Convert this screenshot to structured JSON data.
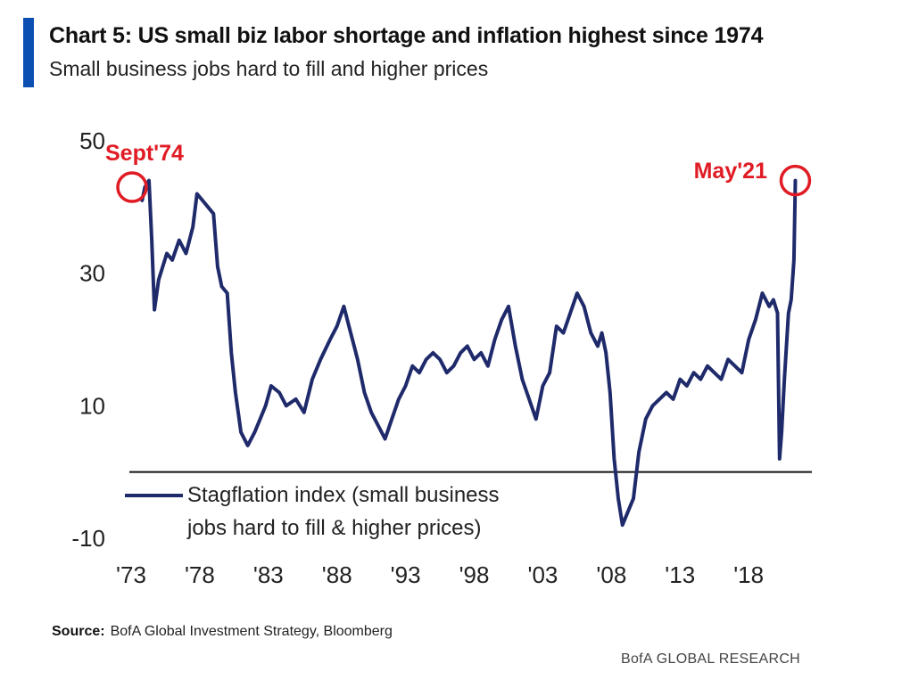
{
  "header": {
    "title": "Chart 5: US small biz labor shortage and inflation highest since 1974",
    "subtitle": "Small business jobs hard to fill and higher prices"
  },
  "footer": {
    "source_label": "Source:",
    "source_text": "BofA Global Investment Strategy, Bloomberg",
    "brand": "BofA GLOBAL RESEARCH"
  },
  "colors": {
    "accent": "#0b4fb3",
    "series": "#1f2a6b",
    "annotation": "#e01b24"
  },
  "chart_data": {
    "type": "line",
    "title": "Chart 5: US small biz labor shortage and inflation highest since 1974",
    "xlabel": "",
    "ylabel": "",
    "xlim": [
      1973,
      2021.5
    ],
    "ylim": [
      -10,
      50
    ],
    "yticks": [
      50,
      30,
      10,
      -10
    ],
    "ytick_labels": [
      "50",
      "30",
      "10",
      "-10"
    ],
    "xticks": [
      1973,
      1978,
      1983,
      1988,
      1993,
      1998,
      2003,
      2008,
      2013,
      2018
    ],
    "xtick_labels": [
      "'73",
      "'78",
      "'83",
      "'88",
      "'93",
      "'98",
      "'03",
      "'08",
      "'13",
      "'18"
    ],
    "zero_line": 0,
    "grid": false,
    "legend": {
      "position": "bottom-left",
      "entries": [
        "Stagflation index (small business",
        "jobs hard to fill & higher prices)"
      ]
    },
    "annotations": [
      {
        "text": "Sept'74",
        "x": 1974.7,
        "y": 43
      },
      {
        "text": "May'21",
        "x": 2021.4,
        "y": 44
      }
    ],
    "series": [
      {
        "name": "Stagflation index (small business jobs hard to fill & higher prices)",
        "x": [
          1973.8,
          1974.0,
          1974.3,
          1974.5,
          1974.7,
          1975.0,
          1975.3,
          1975.6,
          1976.0,
          1976.5,
          1977.0,
          1977.5,
          1977.8,
          1978.2,
          1978.6,
          1979.0,
          1979.3,
          1979.6,
          1980.0,
          1980.3,
          1980.6,
          1981.0,
          1981.5,
          1982.0,
          1982.4,
          1982.8,
          1983.2,
          1983.8,
          1984.3,
          1985.0,
          1985.6,
          1986.2,
          1986.8,
          1987.5,
          1988.0,
          1988.5,
          1989.0,
          1989.5,
          1990.0,
          1990.5,
          1991.0,
          1991.5,
          1992.0,
          1992.5,
          1993.0,
          1993.5,
          1994.0,
          1994.5,
          1995.0,
          1995.5,
          1996.0,
          1996.5,
          1997.0,
          1997.5,
          1998.0,
          1998.5,
          1999.0,
          1999.5,
          2000.0,
          2000.5,
          2001.0,
          2001.5,
          2002.0,
          2002.5,
          2003.0,
          2003.5,
          2004.0,
          2004.5,
          2005.0,
          2005.5,
          2006.0,
          2006.5,
          2007.0,
          2007.3,
          2007.6,
          2007.9,
          2008.2,
          2008.5,
          2008.8,
          2009.2,
          2009.6,
          2010.0,
          2010.5,
          2011.0,
          2011.5,
          2012.0,
          2012.5,
          2013.0,
          2013.5,
          2014.0,
          2014.5,
          2015.0,
          2015.5,
          2016.0,
          2016.5,
          2017.0,
          2017.5,
          2018.0,
          2018.5,
          2019.0,
          2019.5,
          2019.8,
          2020.1,
          2020.25,
          2020.4,
          2020.6,
          2020.9,
          2021.1,
          2021.3,
          2021.4
        ],
        "values": [
          41,
          43,
          44,
          35,
          24.5,
          29,
          31,
          33,
          32,
          35,
          33,
          37,
          42,
          41,
          40,
          39,
          31,
          28,
          27,
          18,
          12,
          6,
          4,
          6,
          8,
          10,
          13,
          12,
          10,
          11,
          9,
          14,
          17,
          20,
          22,
          25,
          21,
          17,
          12,
          9,
          7,
          5,
          8,
          11,
          13,
          16,
          15,
          17,
          18,
          17,
          15,
          16,
          18,
          19,
          17,
          18,
          16,
          20,
          23,
          25,
          19,
          14,
          11,
          8,
          13,
          15,
          22,
          21,
          24,
          27,
          25,
          21,
          19,
          21,
          18,
          12,
          2,
          -4,
          -8,
          -6,
          -4,
          3,
          8,
          10,
          11,
          12,
          11,
          14,
          13,
          15,
          14,
          16,
          15,
          14,
          17,
          16,
          15,
          20,
          23,
          27,
          25,
          26,
          24,
          2,
          6,
          14,
          24,
          26,
          32,
          44
        ]
      }
    ]
  }
}
